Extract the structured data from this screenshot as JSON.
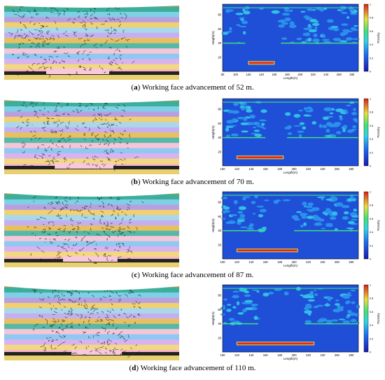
{
  "panels": [
    {
      "letter": "a",
      "caption": "Working face advancement of 52 m.",
      "x_ticks": [
        "80",
        "100",
        "120",
        "140",
        "160",
        "180",
        "200",
        "220",
        "240",
        "260",
        "280"
      ],
      "y_ticks": [
        "80",
        "60",
        "40",
        "20"
      ],
      "high_band": [
        120,
        160
      ],
      "left_cut": 115,
      "right_cut": 170
    },
    {
      "letter": "b",
      "caption": "Working face advancement of 70 m.",
      "x_ticks": [
        "100",
        "120",
        "140",
        "160",
        "180",
        "200",
        "220",
        "240",
        "260",
        "280"
      ],
      "y_ticks": [
        "80",
        "60",
        "40",
        "20"
      ],
      "high_band": [
        120,
        185
      ],
      "left_cut": 160,
      "right_cut": 190
    },
    {
      "letter": "c",
      "caption": "Working face advancement of 87 m.",
      "x_ticks": [
        "100",
        "120",
        "140",
        "160",
        "180",
        "200",
        "220",
        "240",
        "260",
        "280"
      ],
      "y_ticks": [
        "80",
        "60",
        "40",
        "20"
      ],
      "high_band": [
        120,
        205
      ],
      "left_cut": 160,
      "right_cut": 200
    },
    {
      "letter": "d",
      "caption": "Working face advancement of 110 m.",
      "x_ticks": [
        "100",
        "120",
        "140",
        "160",
        "180",
        "200",
        "220",
        "240",
        "260",
        "280"
      ],
      "y_ticks": [
        "80",
        "60",
        "40",
        "20"
      ],
      "high_band": [
        120,
        228
      ],
      "left_cut": 150,
      "right_cut": 215
    }
  ],
  "axis": {
    "xlabel": "Length(m)",
    "ylabel": "Height(m)",
    "colorbar_label": "Porosity",
    "colorbar_ticks": [
      "1",
      "0.8",
      "0.6",
      "0.4",
      "0.2",
      "0"
    ]
  },
  "colors": {
    "heat_bg": "#1e4fd6",
    "heat_mid": "#2d9cf0",
    "heat_cyan": "#36d2e8",
    "heat_green": "#3fe07a",
    "heat_hot": "#e0281e",
    "strata": [
      "#c9a34a",
      "#3cae9a",
      "#7fd0e6",
      "#b8a0e0",
      "#f0d070",
      "#a8d8ea",
      "#c4b0f0",
      "#e8c060",
      "#58b8a8",
      "#f5c6d8",
      "#8fc8f0",
      "#d9b3f0",
      "#f2d880",
      "#f7b6c8",
      "#e8d070"
    ]
  }
}
